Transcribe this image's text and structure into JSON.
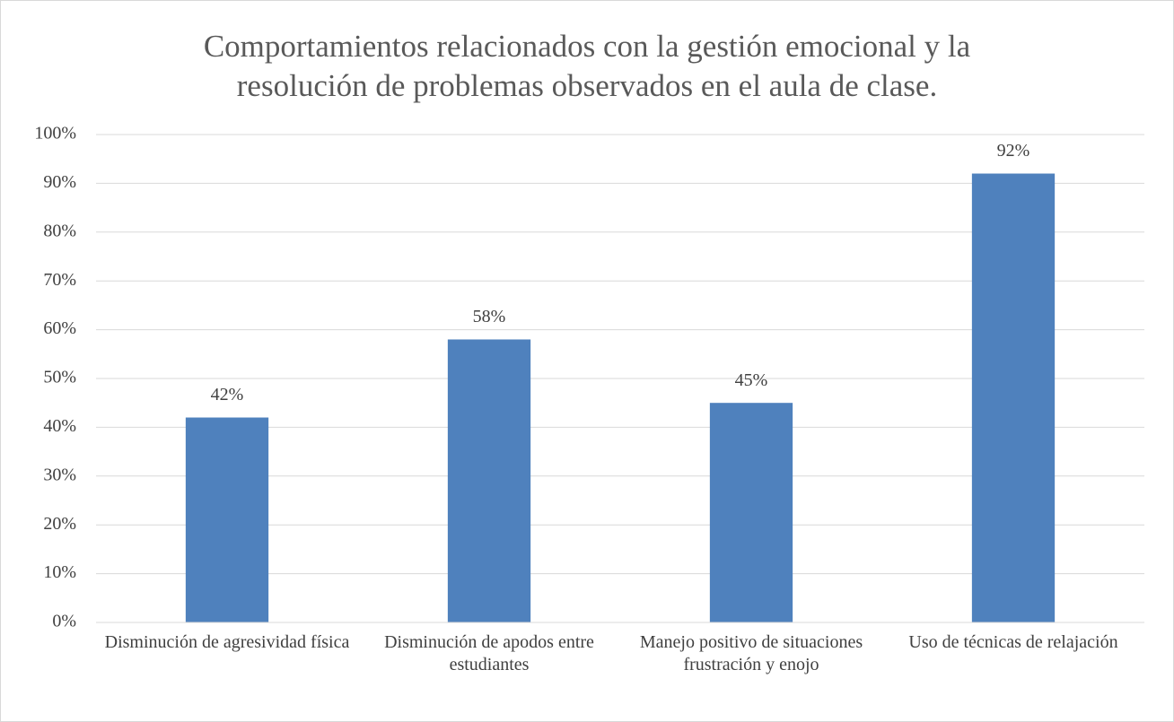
{
  "chart_data": {
    "type": "bar",
    "title": "Comportamientos relacionados con la gestión emocional y la resolución de problemas observados en el aula de clase.",
    "categories": [
      "Disminución de agresividad física",
      "Disminución de apodos entre estudiantes",
      "Manejo positivo de situaciones frustración y enojo",
      "Uso de técnicas de relajación"
    ],
    "values": [
      42,
      58,
      45,
      92
    ],
    "value_labels": [
      "42%",
      "58%",
      "45%",
      "92%"
    ],
    "color": "#4f81bd",
    "ylim": [
      0,
      100
    ],
    "yticks": [
      {
        "value": 0,
        "label": "0%"
      },
      {
        "value": 10,
        "label": "10%"
      },
      {
        "value": 20,
        "label": "20%"
      },
      {
        "value": 30,
        "label": "30%"
      },
      {
        "value": 40,
        "label": "40%"
      },
      {
        "value": 50,
        "label": "50%"
      },
      {
        "value": 60,
        "label": "60%"
      },
      {
        "value": 70,
        "label": "70%"
      },
      {
        "value": 80,
        "label": "80%"
      },
      {
        "value": 90,
        "label": "90%"
      },
      {
        "value": 100,
        "label": "100%"
      }
    ],
    "grid": true
  }
}
